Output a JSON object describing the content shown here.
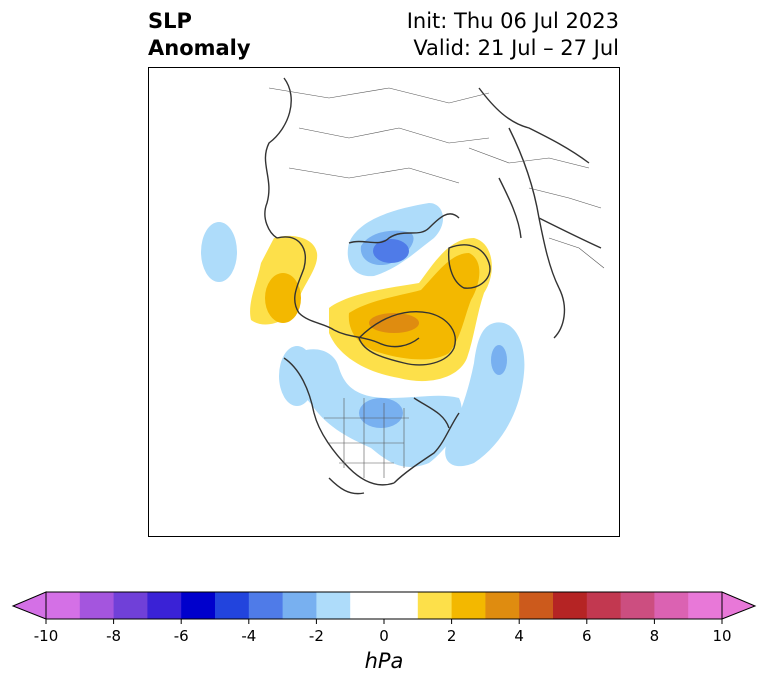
{
  "title": {
    "variable_line1": "SLP",
    "variable_line2": "Anomaly",
    "init": "Init: Thu 06 Jul 2023",
    "valid": "Valid: 21 Jul – 27 Jul"
  },
  "colorbar": {
    "unit": "hPa",
    "tick_labels": [
      "-10",
      "-8",
      "-6",
      "-4",
      "-2",
      "0",
      "2",
      "4",
      "6",
      "8",
      "10"
    ],
    "colors": [
      "#d470e6",
      "#a455de",
      "#7040d8",
      "#3a22d6",
      "#0000cc",
      "#2244dd",
      "#4f7be8",
      "#78b0f0",
      "#aedcfa",
      "#ffffff",
      "#ffffff",
      "#fde04a",
      "#f3b800",
      "#df8c10",
      "#cc5a1c",
      "#b52424",
      "#c23850",
      "#cc4e80",
      "#db62b2",
      "#e878d8"
    ],
    "extend_low_color": "#d470e6",
    "extend_high_color": "#e878d8"
  }
}
